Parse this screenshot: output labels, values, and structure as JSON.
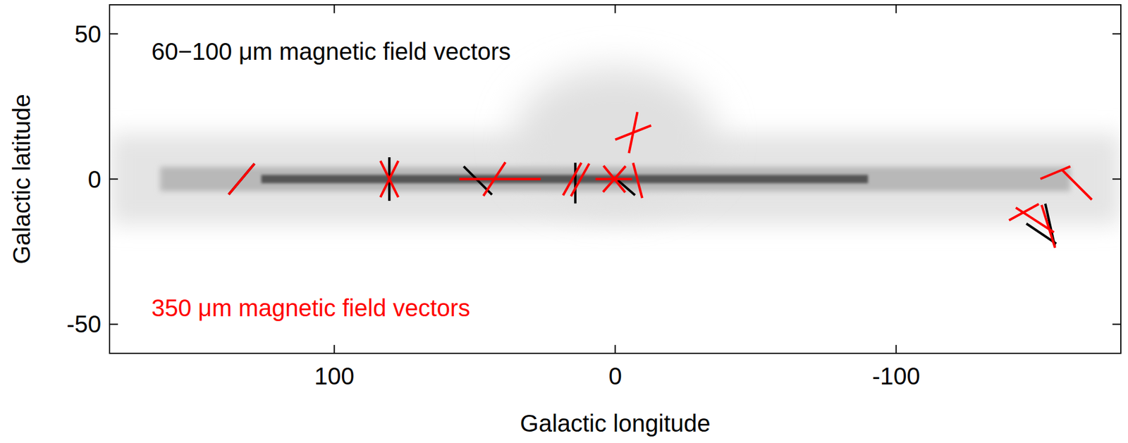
{
  "chart_data": {
    "type": "vector",
    "x_label": "Galactic longitude",
    "y_label": "Galactic latitude",
    "xlim": [
      180,
      -180
    ],
    "ylim": [
      -60,
      60
    ],
    "xticks": [
      100,
      0,
      -100
    ],
    "yticks": [
      -50,
      0,
      50
    ],
    "series": [
      {
        "name": "60−100 μm magnetic field vectors",
        "color": "#000000",
        "x": [
          133,
          80.4,
          48.9,
          14.2,
          -4,
          -151.7,
          -154.8
        ],
        "values": [
          0,
          0,
          -0.5,
          -1.4,
          -3,
          -18.8,
          -15.8
        ],
        "angles": [
          49,
          90,
          -44,
          90,
          -40,
          -33,
          -77
        ],
        "lengths": [
          14,
          15,
          14,
          14,
          8,
          12.7,
          15
        ]
      },
      {
        "name": "350 μm magnetic field vectors",
        "color": "#ff0000",
        "x": [
          133,
          80.4,
          80.4,
          43,
          41,
          15.3,
          12.5,
          0.5,
          0.3,
          0.3,
          -8,
          -6.4,
          -6.4,
          -156.7,
          -164.4,
          -145.5,
          -149.4,
          -154.2
        ],
        "values": [
          0,
          0,
          0,
          0,
          0,
          0,
          -0.3,
          0,
          0,
          0,
          -0.5,
          16,
          16,
          2.2,
          -2,
          -11.4,
          -14.1,
          -16.3
        ],
        "angles": [
          49,
          63,
          -63,
          56,
          0,
          60,
          60,
          0,
          -50,
          48,
          -75,
          78,
          21,
          22,
          -44,
          28,
          -32,
          -72
        ],
        "lengths": [
          14,
          14,
          14,
          14,
          29,
          13,
          13,
          13,
          12,
          12,
          12.5,
          14.5,
          13.7,
          11.5,
          14.7,
          12,
          16,
          15.5
        ]
      }
    ]
  }
}
